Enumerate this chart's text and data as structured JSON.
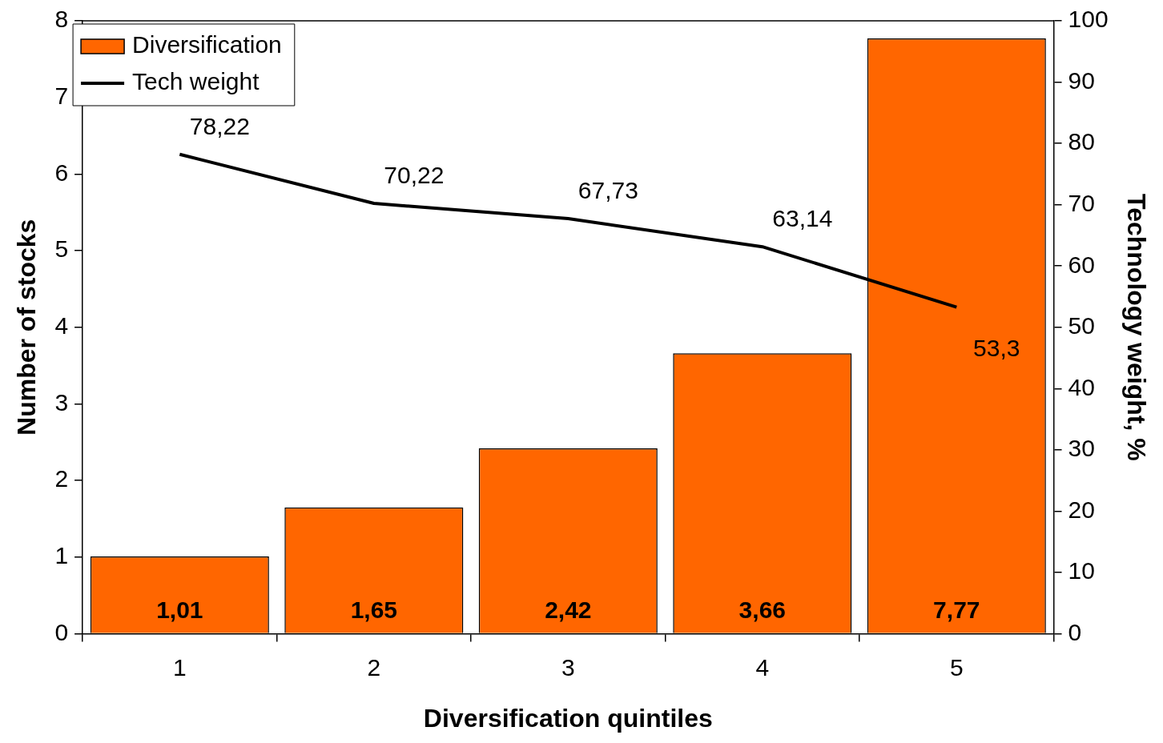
{
  "chart_data": {
    "type": "bar",
    "categories": [
      "1",
      "2",
      "3",
      "4",
      "5"
    ],
    "series": [
      {
        "name": "Diversification",
        "color": "#ff6600",
        "values": [
          1.01,
          1.65,
          2.42,
          3.66,
          7.77
        ],
        "value_labels": [
          "1,01",
          "1,65",
          "2,42",
          "3,66",
          "7,77"
        ]
      },
      {
        "name": "Tech weight",
        "type": "line",
        "axis": "y2",
        "color": "#000000",
        "values": [
          78.22,
          70.22,
          67.73,
          63.14,
          53.3
        ],
        "value_labels": [
          "78,22",
          "70,22",
          "67,73",
          "63,14",
          "53,3"
        ]
      }
    ],
    "xlabel": "Diversification quintiles",
    "ylabel": "Number of stocks",
    "y2label": "Technology weight, %",
    "ylim": [
      0,
      8
    ],
    "yticks": [
      0,
      1,
      2,
      3,
      4,
      5,
      6,
      7,
      8
    ],
    "y2lim": [
      0,
      100
    ],
    "y2ticks": [
      0,
      10,
      20,
      30,
      40,
      50,
      60,
      70,
      80,
      90,
      100
    ],
    "legend": "top left",
    "grid": false,
    "marker": "none"
  }
}
